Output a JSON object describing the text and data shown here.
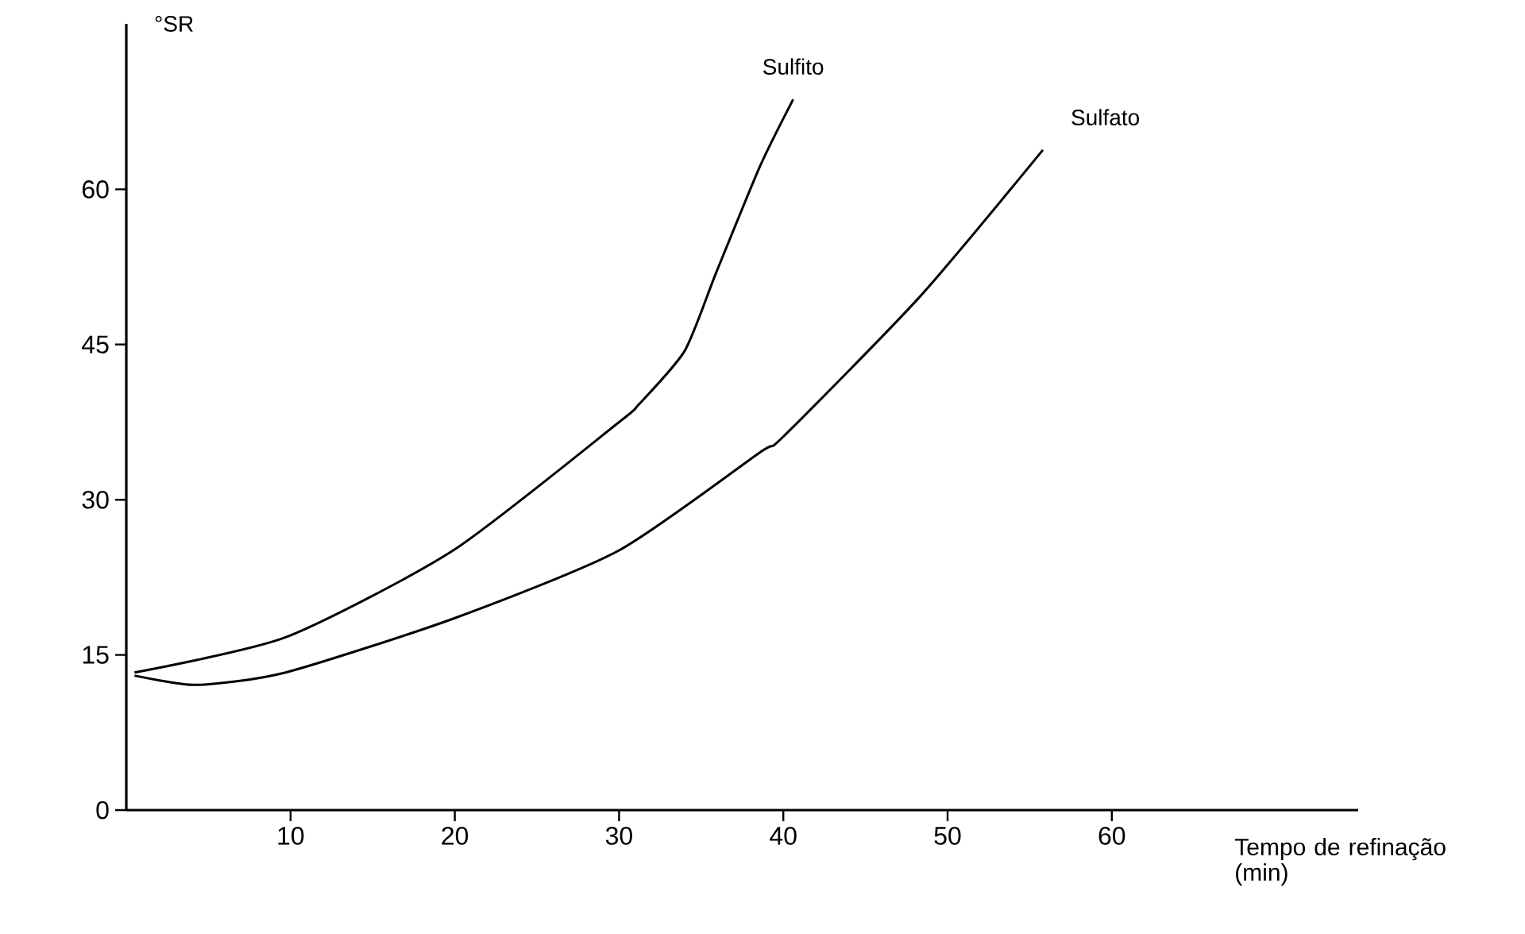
{
  "chart_data": {
    "type": "line",
    "xlabel": "Tempo de refinação (min)",
    "ylabel": "°SR",
    "xlim": [
      0,
      75
    ],
    "ylim": [
      0,
      76
    ],
    "xticks": [
      10,
      20,
      30,
      40,
      50,
      60
    ],
    "yticks": [
      0,
      15,
      30,
      45,
      60
    ],
    "grid": false,
    "marker": "none",
    "line_style": "solid",
    "series": [
      {
        "name": "Sulfito",
        "color": "#000000",
        "x": [
          0.5,
          9.7,
          19.9,
          30,
          31.2,
          34,
          35.9,
          38.6,
          40.6
        ],
        "values": [
          13.3,
          16.7,
          25.1,
          37.5,
          39.2,
          44.4,
          51.9,
          62.3,
          68.7
        ]
      },
      {
        "name": "Sulfato",
        "color": "#000000",
        "x": [
          0.5,
          4.3,
          9.7,
          19.9,
          30,
          38.6,
          40,
          48.3,
          55.8
        ],
        "values": [
          13,
          12.1,
          13.3,
          18.5,
          25.1,
          34.6,
          36.1,
          49.6,
          63.8
        ]
      }
    ]
  }
}
